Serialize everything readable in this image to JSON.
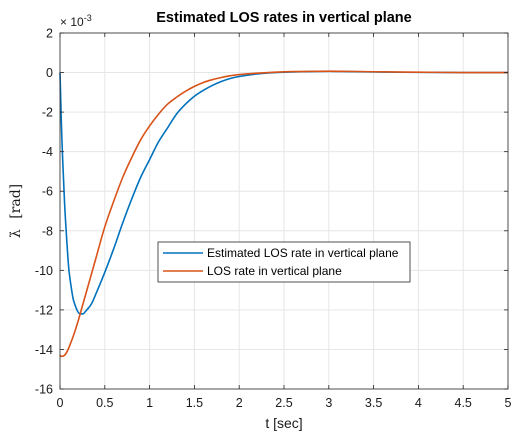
{
  "chart_data": {
    "type": "line",
    "title": "Estimated LOS rates in vertical plane",
    "xlabel": "t [sec]",
    "ylabel_symbol": "λ̇",
    "ylabel_unit": "[rad]",
    "y_exponent_text": "× 10",
    "y_exponent_power": "-3",
    "xlim": [
      0,
      5
    ],
    "ylim": [
      -16,
      2
    ],
    "x_ticks": [
      0,
      0.5,
      1,
      1.5,
      2,
      2.5,
      3,
      3.5,
      4,
      4.5,
      5
    ],
    "x_tick_labels": [
      "0",
      "0.5",
      "1",
      "1.5",
      "2",
      "2.5",
      "3",
      "3.5",
      "4",
      "4.5",
      "5"
    ],
    "y_ticks": [
      2,
      0,
      -2,
      -4,
      -6,
      -8,
      -10,
      -12,
      -14,
      -16
    ],
    "y_tick_labels": [
      "2",
      "0",
      "-2",
      "-4",
      "-6",
      "-8",
      "-10",
      "-12",
      "-14",
      "-16"
    ],
    "grid": true,
    "legend_position": "center",
    "series": [
      {
        "name": "Estimated LOS rate in vertical plane",
        "color": "#0072BD",
        "x": [
          0,
          0.02,
          0.05,
          0.08,
          0.1,
          0.13,
          0.15,
          0.18,
          0.2,
          0.22,
          0.24,
          0.26,
          0.28,
          0.3,
          0.35,
          0.4,
          0.5,
          0.6,
          0.7,
          0.8,
          0.9,
          1.0,
          1.1,
          1.2,
          1.3,
          1.4,
          1.5,
          1.6,
          1.7,
          1.8,
          1.9,
          2.0,
          2.2,
          2.4,
          2.6,
          2.8,
          3.0,
          3.2,
          3.5,
          4.0,
          4.5,
          5.0
        ],
        "y": [
          0,
          -3.2,
          -6.5,
          -8.8,
          -10.0,
          -11.0,
          -11.5,
          -11.9,
          -12.1,
          -12.2,
          -12.2,
          -12.2,
          -12.1,
          -12.0,
          -11.7,
          -11.2,
          -10.1,
          -8.9,
          -7.6,
          -6.4,
          -5.3,
          -4.4,
          -3.5,
          -2.8,
          -2.1,
          -1.6,
          -1.2,
          -0.9,
          -0.65,
          -0.45,
          -0.3,
          -0.2,
          -0.07,
          0.0,
          0.03,
          0.05,
          0.06,
          0.05,
          0.03,
          0.01,
          0.0,
          0.0
        ]
      },
      {
        "name": "LOS rate in vertical plane",
        "color": "#D95319",
        "x": [
          0,
          0.02,
          0.05,
          0.08,
          0.1,
          0.15,
          0.2,
          0.25,
          0.3,
          0.35,
          0.4,
          0.5,
          0.6,
          0.7,
          0.8,
          0.9,
          1.0,
          1.1,
          1.2,
          1.3,
          1.4,
          1.5,
          1.6,
          1.7,
          1.8,
          1.9,
          2.0,
          2.2,
          2.4,
          2.6,
          2.8,
          3.0,
          3.2,
          3.5,
          4.0,
          4.5,
          5.0
        ],
        "y": [
          -14.3,
          -14.35,
          -14.3,
          -14.1,
          -13.9,
          -13.3,
          -12.6,
          -11.8,
          -11.0,
          -10.2,
          -9.4,
          -7.8,
          -6.5,
          -5.3,
          -4.3,
          -3.4,
          -2.7,
          -2.1,
          -1.6,
          -1.25,
          -0.95,
          -0.7,
          -0.5,
          -0.36,
          -0.25,
          -0.16,
          -0.1,
          -0.03,
          0.02,
          0.05,
          0.06,
          0.07,
          0.06,
          0.04,
          0.02,
          0.0,
          0.0
        ]
      }
    ]
  }
}
